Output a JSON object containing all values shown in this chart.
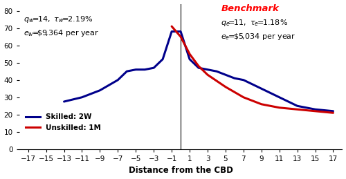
{
  "xlabel": "Distance from the CBD",
  "xlim": [
    -18,
    18
  ],
  "ylim": [
    0,
    84
  ],
  "xticks": [
    -17,
    -15,
    -13,
    -11,
    -9,
    -7,
    -5,
    -3,
    -1,
    1,
    3,
    5,
    7,
    9,
    11,
    13,
    15,
    17
  ],
  "yticks": [
    0,
    10,
    20,
    30,
    40,
    50,
    60,
    70,
    80
  ],
  "background_color": "#ffffff",
  "skilled_color": "#00008B",
  "unskilled_color": "#CC0000",
  "legend_skilled": "Skilled: 2W",
  "legend_unskilled": "Unskilled: 1M",
  "skilled_x": [
    -13,
    -11,
    -9,
    -7,
    -6,
    -5,
    -4,
    -3,
    -2,
    -1,
    0,
    1,
    2,
    3,
    4,
    5,
    6,
    7,
    9,
    11,
    13,
    15,
    17
  ],
  "skilled_y": [
    27.5,
    30,
    34,
    40,
    45,
    46,
    46,
    47,
    52,
    68,
    68,
    52,
    47,
    46,
    45,
    43,
    41,
    40,
    35,
    30,
    25,
    23,
    22
  ],
  "unskilled_x": [
    -1,
    0,
    1,
    2,
    3,
    5,
    7,
    9,
    11,
    13,
    15,
    17
  ],
  "unskilled_y": [
    71,
    65,
    55,
    48,
    43,
    36,
    30,
    26,
    24,
    23,
    22,
    21
  ]
}
